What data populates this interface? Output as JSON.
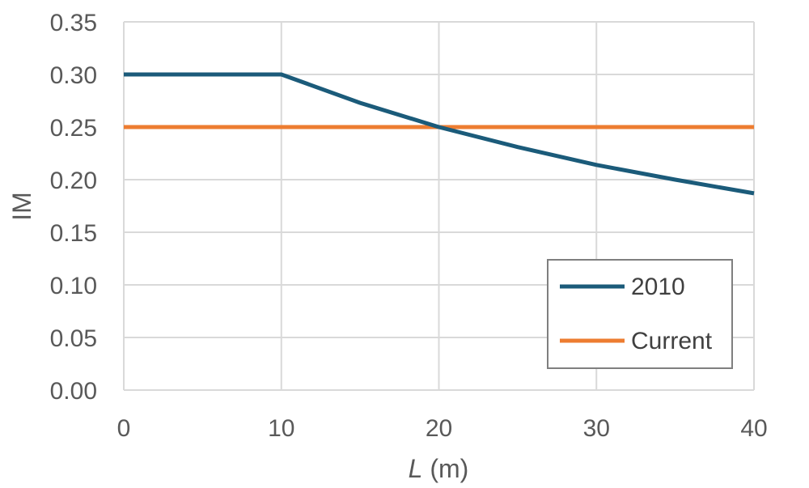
{
  "chart_data": {
    "type": "line",
    "xlabel": "L (m)",
    "xlabel_var": "L",
    "xlabel_unit": " (m)",
    "ylabel": "IM",
    "xlim": [
      0,
      40
    ],
    "ylim": [
      0,
      0.35
    ],
    "xticks": [
      "0",
      "10",
      "20",
      "30",
      "40"
    ],
    "yticks": [
      "0.00",
      "0.05",
      "0.10",
      "0.15",
      "0.20",
      "0.25",
      "0.30",
      "0.35"
    ],
    "grid": true,
    "legend_position": "bottom-right",
    "series": [
      {
        "name": "2010",
        "color": "#1B5B7A",
        "x": [
          0,
          10,
          15,
          20,
          25,
          30,
          35,
          40
        ],
        "y": [
          0.3,
          0.3,
          0.273,
          0.25,
          0.231,
          0.214,
          0.2,
          0.187
        ]
      },
      {
        "name": "Current",
        "color": "#ED7D31",
        "x": [
          0,
          40
        ],
        "y": [
          0.25,
          0.25
        ]
      }
    ]
  }
}
